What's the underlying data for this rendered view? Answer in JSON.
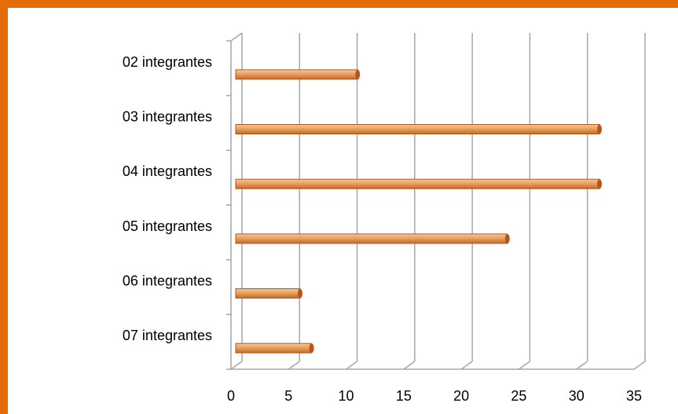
{
  "chart_data": {
    "type": "bar",
    "orientation": "horizontal",
    "categories": [
      "02 integrantes",
      "03 integrantes",
      "04 integrantes",
      "05 integrantes",
      "06 integrantes",
      "07  integrantes"
    ],
    "values": [
      11,
      32,
      32,
      24,
      6,
      7
    ],
    "title": "",
    "xlabel": "",
    "ylabel": "",
    "xlim": [
      0,
      35
    ],
    "xticks": [
      "0",
      "5",
      "10",
      "15",
      "20",
      "25",
      "30",
      "35"
    ],
    "grid": true,
    "legend": "none",
    "colors": {
      "bar": "#E9A15F",
      "bar_dark": "#B5561A",
      "frame": "#E46C0A",
      "grid": "#A6A6A6"
    }
  }
}
